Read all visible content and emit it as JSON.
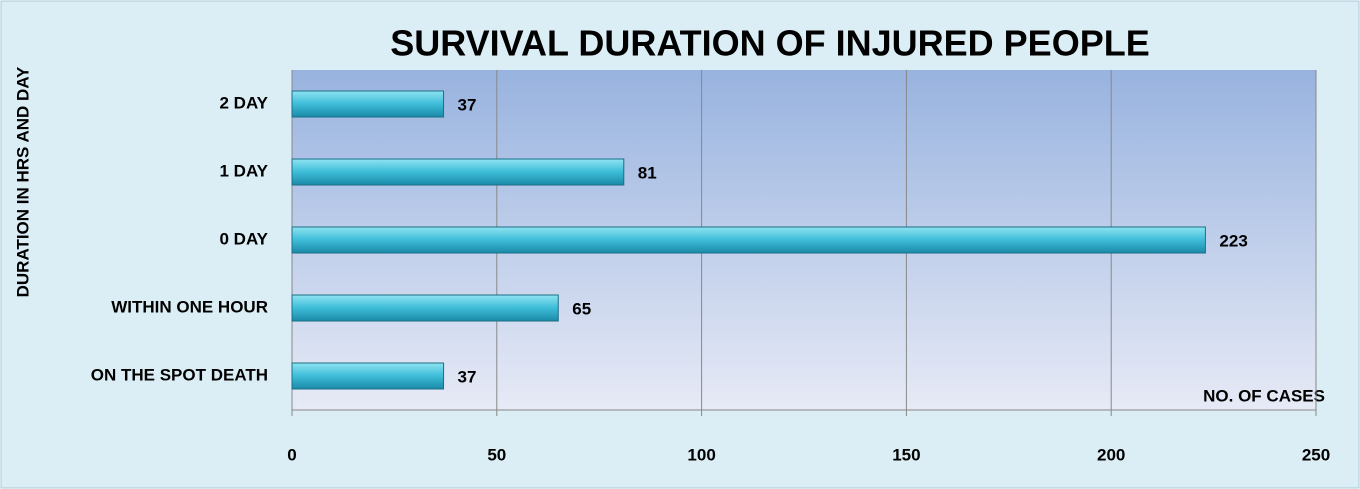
{
  "chart_data": {
    "type": "barh",
    "title": "SURVIVAL DURATION OF INJURED PEOPLE",
    "ylabel": "DURATION  IN HRS AND DAY",
    "xlabel": "NO. OF CASES",
    "categories": [
      "ON THE SPOT DEATH",
      "WITHIN ONE HOUR",
      "0 DAY",
      "1 DAY",
      "2 DAY"
    ],
    "values": [
      37,
      65,
      223,
      81,
      37
    ],
    "color": "#3dbcd8",
    "xlim": [
      0,
      250
    ],
    "xticks": [
      0,
      50,
      100,
      150,
      200,
      250
    ],
    "grid": true
  }
}
